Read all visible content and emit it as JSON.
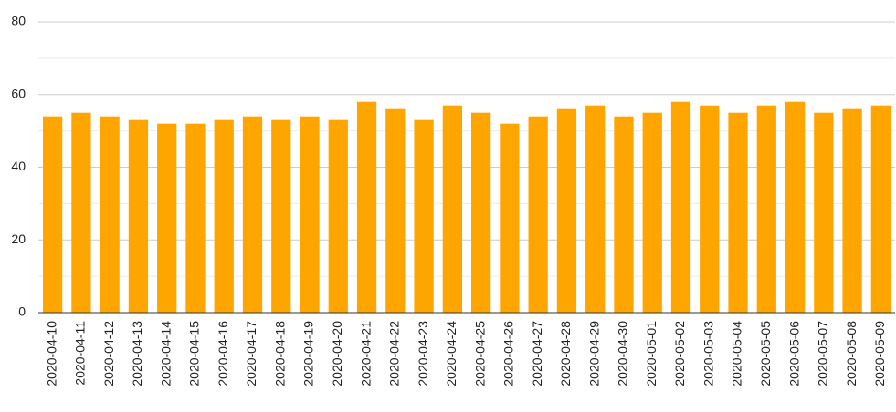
{
  "chart_data": {
    "type": "bar",
    "categories": [
      "2020-04-10",
      "2020-04-11",
      "2020-04-12",
      "2020-04-13",
      "2020-04-14",
      "2020-04-15",
      "2020-04-16",
      "2020-04-17",
      "2020-04-18",
      "2020-04-19",
      "2020-04-20",
      "2020-04-21",
      "2020-04-22",
      "2020-04-23",
      "2020-04-24",
      "2020-04-25",
      "2020-04-26",
      "2020-04-27",
      "2020-04-28",
      "2020-04-29",
      "2020-04-30",
      "2020-05-01",
      "2020-05-02",
      "2020-05-03",
      "2020-05-04",
      "2020-05-05",
      "2020-05-06",
      "2020-05-07",
      "2020-05-08",
      "2020-05-09"
    ],
    "values": [
      54,
      55,
      54,
      53,
      52,
      52,
      53,
      54,
      53,
      54,
      53,
      58,
      56,
      53,
      57,
      55,
      52,
      54,
      56,
      57,
      54,
      55,
      58,
      57,
      55,
      57,
      58,
      55,
      56,
      57
    ],
    "color": "#ffa500",
    "ylim": [
      0,
      80
    ],
    "yticks": [
      0,
      20,
      40,
      60,
      80
    ],
    "minor_gridlines": [
      10,
      30,
      50,
      70
    ],
    "grid": true
  }
}
